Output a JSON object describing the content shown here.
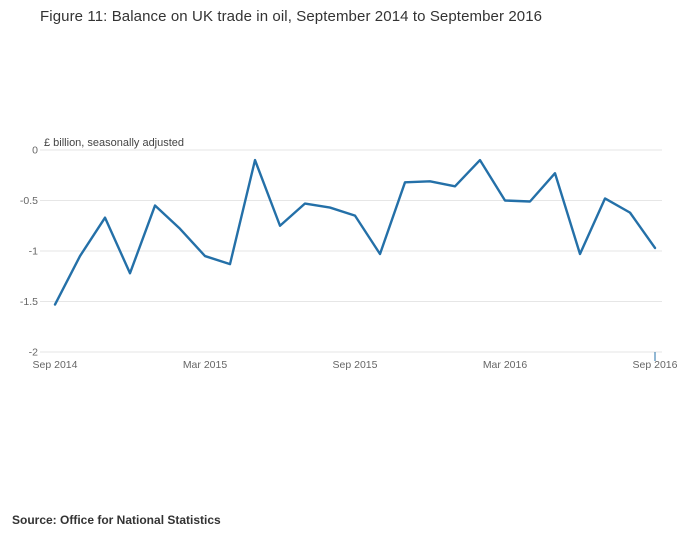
{
  "page": {
    "title": "Figure 11: Balance on UK trade in oil, September 2014 to September 2016",
    "source": "Source: Office for National Statistics"
  },
  "chart_data": {
    "type": "line",
    "title": "Figure 11: Balance on UK trade in oil, September 2014 to September 2016",
    "unit_label": "£ billion, seasonally adjusted",
    "x": [
      "Sep 2014",
      "Oct 2014",
      "Nov 2014",
      "Dec 2014",
      "Jan 2015",
      "Feb 2015",
      "Mar 2015",
      "Apr 2015",
      "May 2015",
      "Jun 2015",
      "Jul 2015",
      "Aug 2015",
      "Sep 2015",
      "Oct 2015",
      "Nov 2015",
      "Dec 2015",
      "Jan 2016",
      "Feb 2016",
      "Mar 2016",
      "Apr 2016",
      "May 2016",
      "Jun 2016",
      "Jul 2016",
      "Aug 2016",
      "Sep 2016"
    ],
    "series": [
      {
        "name": "Balance on UK trade in oil",
        "values": [
          -1.53,
          -1.05,
          -0.67,
          -1.22,
          -0.55,
          -0.78,
          -1.05,
          -1.13,
          -0.1,
          -0.75,
          -0.53,
          -0.57,
          -0.65,
          -1.03,
          -0.32,
          -0.31,
          -0.36,
          -0.1,
          -0.5,
          -0.51,
          -0.23,
          -1.03,
          -0.48,
          -0.62,
          -0.97
        ]
      }
    ],
    "x_tick_labels": [
      "Sep 2014",
      "Mar 2015",
      "Sep 2015",
      "Mar 2016",
      "Sep 2016"
    ],
    "y_ticks": [
      0,
      -0.5,
      -1,
      -1.5,
      -2
    ],
    "y_tick_labels": [
      "0",
      "-0.5",
      "-1",
      "-1.5",
      "-2"
    ],
    "ylim": [
      -2,
      0
    ],
    "grid": true,
    "legend": "none",
    "line_color": "#2470a8",
    "grid_color": "#e6e6e6"
  }
}
